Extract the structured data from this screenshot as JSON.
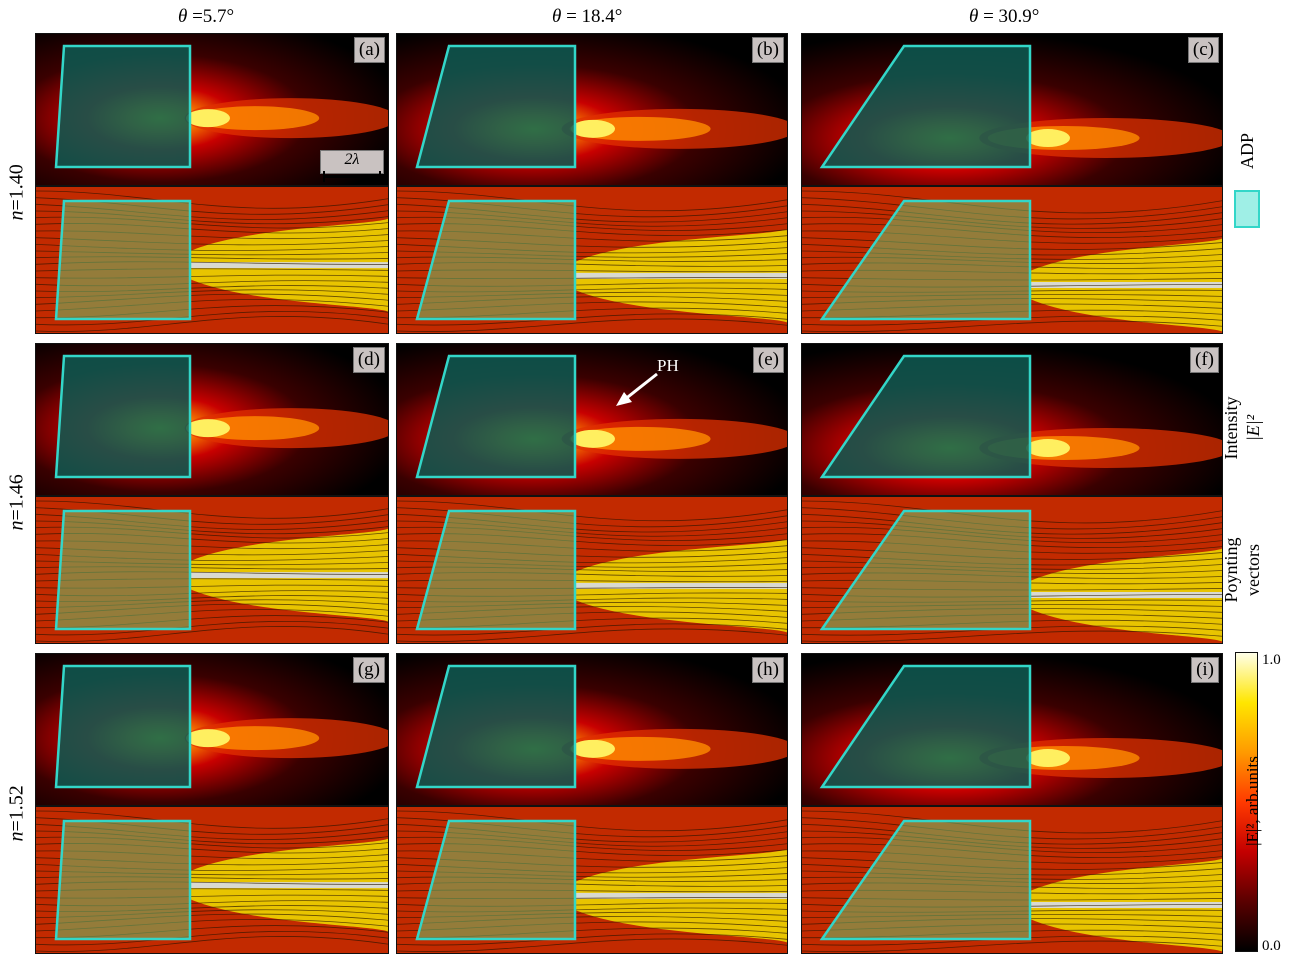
{
  "figure": {
    "column_titles": [
      {
        "symbol": "θ",
        "value": " =5.7°"
      },
      {
        "symbol": "θ",
        "value": " = 18.4°"
      },
      {
        "symbol": "θ",
        "value": " = 30.9°"
      }
    ],
    "row_labels": [
      {
        "symbol": "n",
        "value": "=1.40"
      },
      {
        "symbol": "n",
        "value": "=1.46"
      },
      {
        "symbol": "n",
        "value": "=1.52"
      }
    ],
    "panel_tags": [
      "(a)",
      "(b)",
      "(c)",
      "(d)",
      "(e)",
      "(f)",
      "(g)",
      "(h)",
      "(i)"
    ],
    "scale_bar": "2λ",
    "annotation": "PH",
    "legend_adp": "ADP",
    "legend_intensity": [
      "Intensity",
      "|E|²"
    ],
    "legend_poynting": [
      "Poynting",
      "vectors"
    ],
    "colorbar": {
      "label": "|E|², arb.units",
      "max_label": "1.0",
      "min_label": "0.0",
      "colors": [
        "#000000",
        "#5a0000",
        "#c40000",
        "#ff3a00",
        "#ff9a00",
        "#ffe600",
        "#ffffe8"
      ]
    },
    "adp_color": "#33d6c8"
  }
}
